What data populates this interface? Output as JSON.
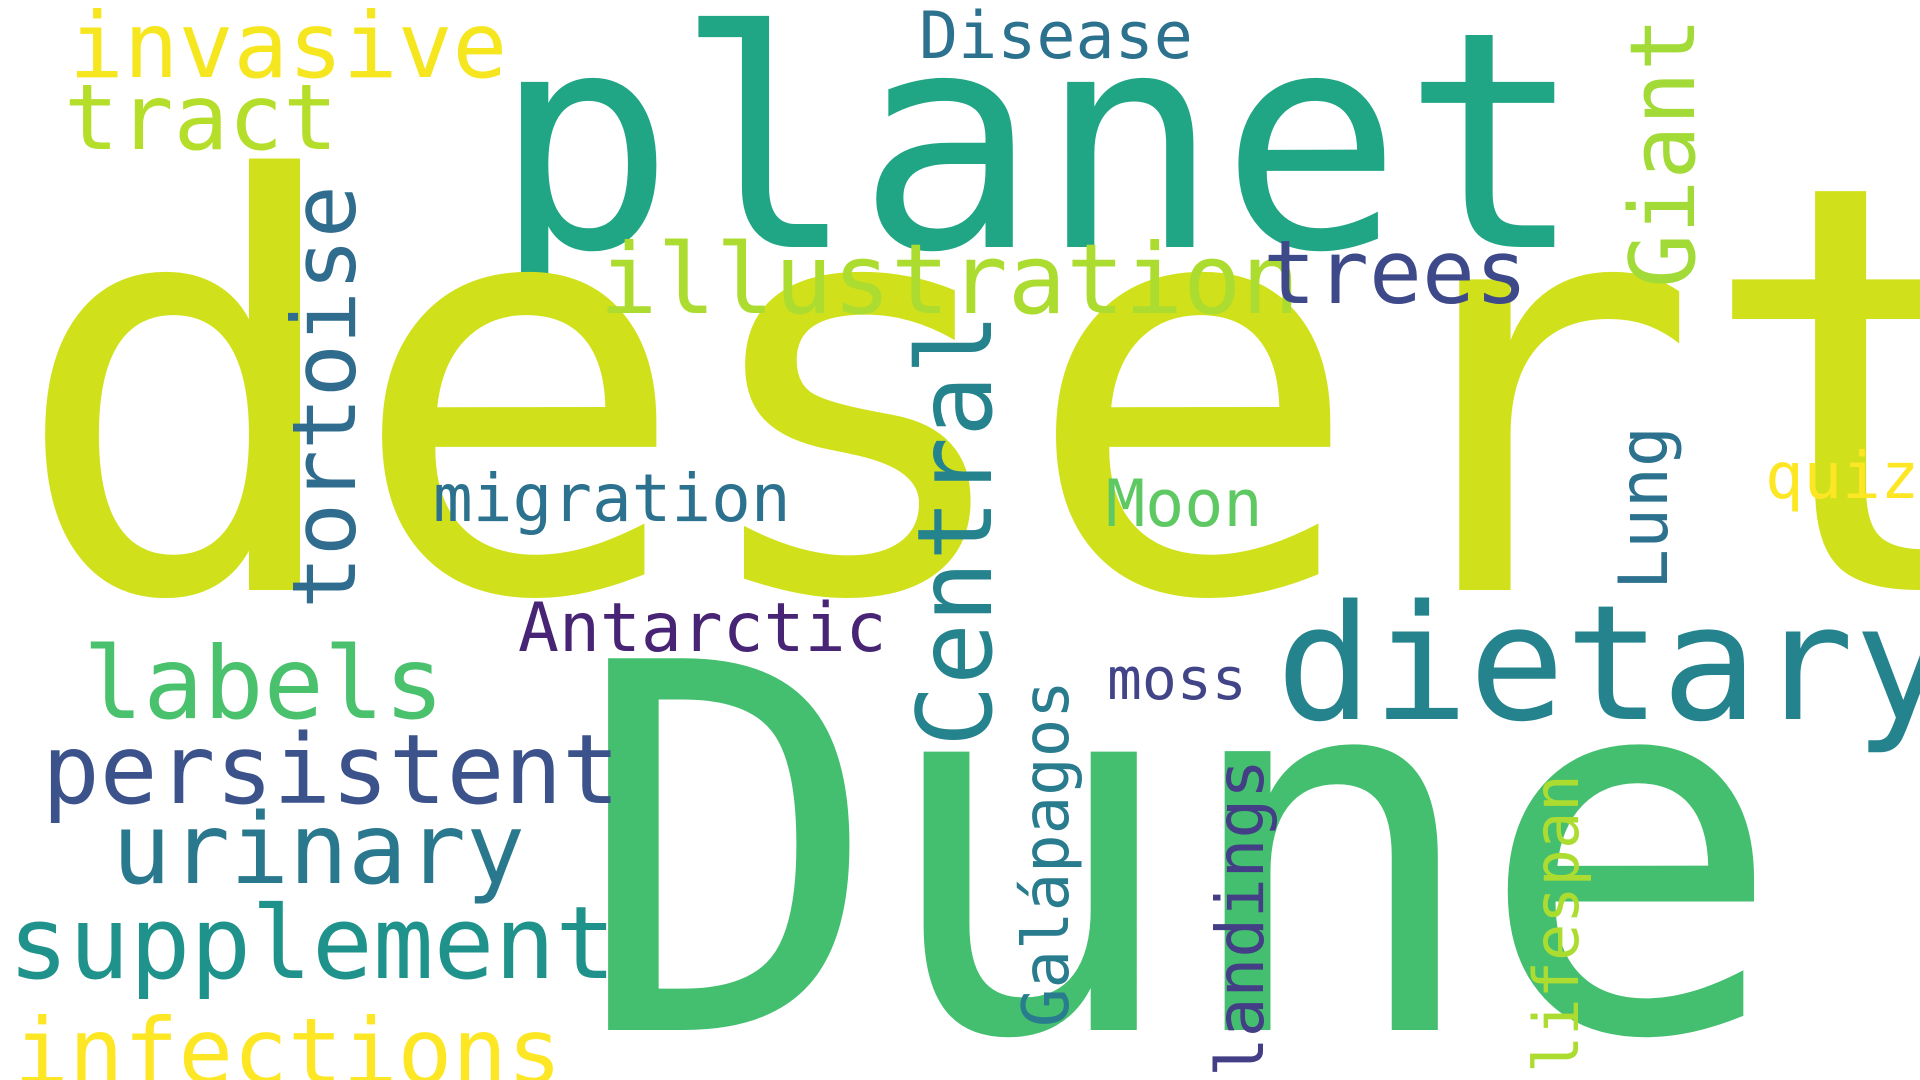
{
  "words": {
    "desert": "desert",
    "dune": "Dune",
    "planet": "planet",
    "dietary": "dietary",
    "illustration": "illustration",
    "trees": "trees",
    "invasive": "invasive",
    "tract": "tract",
    "disease": "Disease",
    "giant": "Giant",
    "tortoise": "tortoise",
    "central": "Central",
    "migration": "migration",
    "moon": "Moon",
    "quiz": "quiz",
    "lung": "Lung",
    "antarctic": "Antarctic",
    "labels": "labels",
    "persistent": "persistent",
    "urinary": "urinary",
    "supplement": "supplement",
    "infections": "infections",
    "galapagos": "Galápagos",
    "moss": "moss",
    "landings": "landings",
    "lifespan": "lifespan"
  },
  "colors": {
    "yellow_green": "#d0e11c",
    "green": "#44bf70",
    "teal": "#21a685",
    "blue_teal": "#25838e",
    "light_green": "#addc30",
    "yellow": "#fde725",
    "dark_blue": "#3b528b",
    "blue": "#2c728e",
    "purple": "#482475",
    "mid_green": "#5ec962"
  }
}
